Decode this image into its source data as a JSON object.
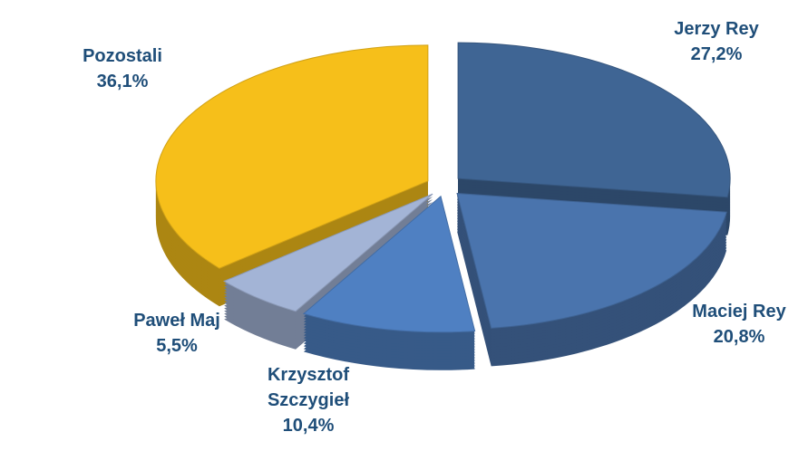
{
  "chart_data": {
    "type": "pie",
    "categories": [
      "Jerzy Rey",
      "Maciej Rey",
      "Krzysztof Szczygieł",
      "Paweł Maj",
      "Pozostali"
    ],
    "values": [
      27.2,
      20.8,
      10.4,
      5.5,
      36.1
    ],
    "value_labels": [
      "27,2%",
      "20,8%",
      "10,4%",
      "5,5%",
      "36,1%"
    ],
    "colors": [
      "#3f6594",
      "#4a74ad",
      "#4f80c2",
      "#a3b4d6",
      "#f6bf1a"
    ]
  }
}
